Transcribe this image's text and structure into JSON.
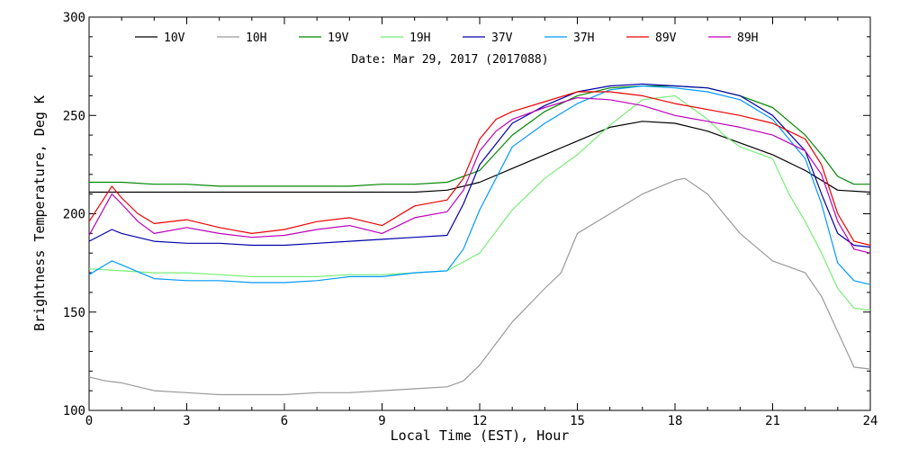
{
  "chart_data": {
    "type": "line",
    "title": "",
    "annotation": "Date: Mar 29, 2017 (2017088)",
    "xlabel": "Local Time (EST), Hour",
    "ylabel": "Brightness Temperature, Deg K",
    "xlim": [
      0,
      24
    ],
    "ylim": [
      100,
      300
    ],
    "xticks": [
      0,
      3,
      6,
      9,
      12,
      15,
      18,
      21,
      24
    ],
    "yticks": [
      100,
      150,
      200,
      250,
      300
    ],
    "grid": false,
    "legend_position": "top",
    "series": [
      {
        "name": "10V",
        "color": "#000000",
        "x": [
          0,
          1,
          2,
          3,
          4,
          5,
          6,
          7,
          8,
          9,
          10,
          11,
          12,
          13,
          14,
          15,
          16,
          17,
          18,
          19,
          20,
          21,
          22,
          23,
          24
        ],
        "y": [
          211,
          211,
          211,
          211,
          211,
          211,
          211,
          211,
          211,
          211,
          211,
          212,
          216,
          223,
          230,
          237,
          244,
          247,
          246,
          242,
          236,
          230,
          222,
          212,
          211
        ]
      },
      {
        "name": "10H",
        "color": "#999999",
        "x": [
          0,
          0.5,
          1,
          2,
          3,
          4,
          5,
          6,
          7,
          8,
          9,
          10,
          11,
          11.5,
          12,
          13,
          14,
          14.5,
          15,
          16,
          17,
          18,
          18.3,
          19,
          20,
          21,
          22,
          22.5,
          23,
          23.5,
          24
        ],
        "y": [
          117,
          115,
          114,
          110,
          109,
          108,
          108,
          108,
          109,
          109,
          110,
          111,
          112,
          115,
          123,
          145,
          162,
          170,
          190,
          200,
          210,
          217,
          218,
          210,
          190,
          176,
          170,
          158,
          140,
          122,
          121
        ]
      },
      {
        "name": "19V",
        "color": "#008800",
        "x": [
          0,
          1,
          2,
          3,
          4,
          5,
          6,
          7,
          8,
          9,
          10,
          11,
          12,
          13,
          14,
          15,
          16,
          17,
          18,
          19,
          20,
          21,
          22,
          22.5,
          23,
          23.5,
          24
        ],
        "y": [
          216,
          216,
          215,
          215,
          214,
          214,
          214,
          214,
          214,
          215,
          215,
          216,
          222,
          240,
          252,
          260,
          264,
          265,
          265,
          264,
          260,
          254,
          240,
          230,
          219,
          215,
          215
        ]
      },
      {
        "name": "19H",
        "color": "#77ee77",
        "x": [
          0,
          1,
          2,
          3,
          4,
          5,
          6,
          7,
          8,
          9,
          10,
          11,
          12,
          13,
          14,
          15,
          16,
          17,
          18,
          19,
          19.5,
          20,
          21,
          21.5,
          22,
          22.5,
          23,
          23.5,
          24
        ],
        "y": [
          172,
          171,
          170,
          170,
          169,
          168,
          168,
          168,
          169,
          169,
          170,
          171,
          180,
          202,
          218,
          230,
          245,
          258,
          260,
          248,
          240,
          234,
          228,
          210,
          196,
          180,
          162,
          152,
          151
        ]
      },
      {
        "name": "37V",
        "color": "#0000aa",
        "x": [
          0,
          0.7,
          1,
          2,
          3,
          4,
          5,
          6,
          7,
          8,
          9,
          10,
          11,
          11.5,
          12,
          13,
          14,
          15,
          16,
          17,
          18,
          19,
          20,
          21,
          22,
          22.5,
          23,
          23.5,
          24
        ],
        "y": [
          186,
          192,
          190,
          186,
          185,
          185,
          184,
          184,
          185,
          186,
          187,
          188,
          189,
          205,
          225,
          246,
          255,
          262,
          265,
          266,
          265,
          264,
          260,
          250,
          232,
          210,
          190,
          184,
          183
        ]
      },
      {
        "name": "37H",
        "color": "#0099ff",
        "x": [
          0,
          0.7,
          1,
          2,
          3,
          4,
          5,
          6,
          7,
          8,
          9,
          10,
          11,
          11.5,
          12,
          13,
          14,
          15,
          16,
          17,
          18,
          19,
          20,
          21,
          22,
          22.5,
          23,
          23.5,
          24
        ],
        "y": [
          169,
          176,
          174,
          167,
          166,
          166,
          165,
          165,
          166,
          168,
          168,
          170,
          171,
          182,
          202,
          234,
          246,
          256,
          263,
          265,
          264,
          262,
          258,
          248,
          228,
          205,
          175,
          166,
          164
        ]
      },
      {
        "name": "89V",
        "color": "#ee0000",
        "x": [
          0,
          0.7,
          1,
          1.5,
          2,
          3,
          4,
          5,
          6,
          7,
          8,
          9,
          10,
          11,
          11.5,
          12,
          12.5,
          13,
          14,
          15,
          16,
          17,
          18,
          19,
          20,
          21,
          22,
          22.5,
          23,
          23.5,
          24
        ],
        "y": [
          196,
          214,
          208,
          200,
          195,
          197,
          193,
          190,
          192,
          196,
          198,
          194,
          204,
          207,
          218,
          238,
          248,
          252,
          257,
          262,
          262,
          260,
          256,
          253,
          250,
          246,
          238,
          225,
          200,
          186,
          184
        ]
      },
      {
        "name": "89H",
        "color": "#bb00bb",
        "x": [
          0,
          0.7,
          1,
          1.5,
          2,
          3,
          4,
          5,
          6,
          7,
          8,
          9,
          10,
          11,
          11.5,
          12,
          12.5,
          13,
          14,
          15,
          16,
          17,
          18,
          19,
          20,
          21,
          22,
          22.5,
          23,
          23.5,
          24
        ],
        "y": [
          189,
          210,
          205,
          196,
          190,
          193,
          190,
          188,
          189,
          192,
          194,
          190,
          198,
          201,
          212,
          232,
          242,
          248,
          254,
          259,
          258,
          255,
          250,
          247,
          244,
          240,
          232,
          220,
          196,
          182,
          180
        ]
      }
    ]
  }
}
